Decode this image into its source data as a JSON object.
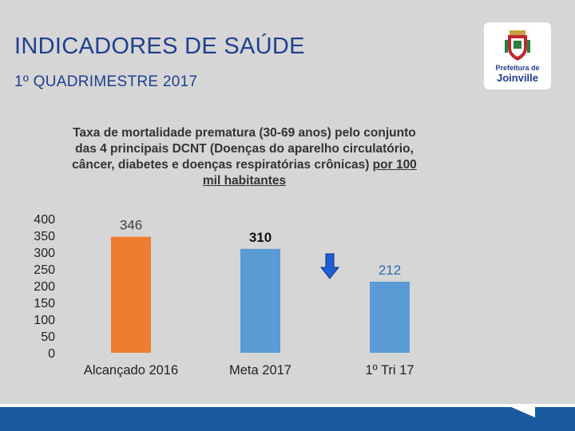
{
  "slide": {
    "title": "INDICADORES DE SAÚDE",
    "subtitle": "1º QUADRIMESTRE 2017"
  },
  "logo": {
    "line1": "Prefeitura de",
    "line2": "Joinville"
  },
  "chart_title": {
    "part1": "Taxa de mortalidade prematura (30-69 anos) pelo conjunto das 4 principais DCNT (Doenças do aparelho circulatório, câncer, diabetes e doenças respiratórias crônicas)",
    "part2": "por 100 mil habitantes"
  },
  "chart_data": {
    "type": "bar",
    "categories": [
      "Alcançado 2016",
      "Meta 2017",
      "1º Tri 17"
    ],
    "values": [
      346,
      310,
      212
    ],
    "data_labels": [
      "346",
      "310",
      "212"
    ],
    "bar_colors": [
      "#ed7d31",
      "#5b9bd5",
      "#5b9bd5"
    ],
    "label_colors": [
      "#404040",
      "#111111",
      "#2e6db5"
    ],
    "ylim": [
      0,
      400
    ],
    "yticks": [
      0,
      50,
      100,
      150,
      200,
      250,
      300,
      350,
      400
    ],
    "grid": false,
    "legend": "none",
    "annotation": {
      "type": "down-arrow",
      "color": "#1f5fd6"
    }
  },
  "colors": {
    "title": "#1f3f8f",
    "background": "#d6d6d6",
    "footer": "#1a5a9e"
  }
}
